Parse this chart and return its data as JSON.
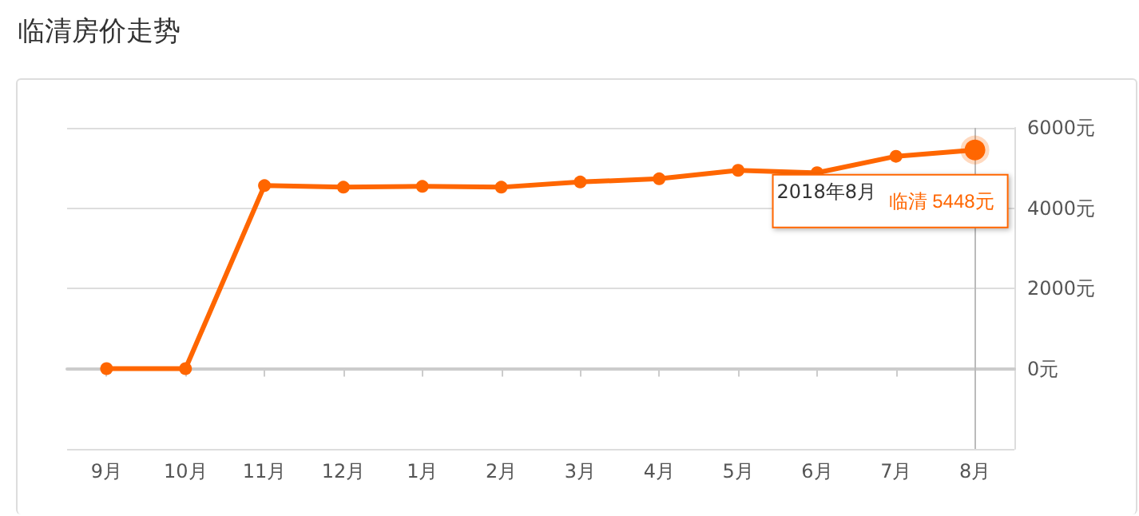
{
  "chart_data": {
    "type": "line",
    "title": "临清房价走势",
    "categories": [
      "9月",
      "10月",
      "11月",
      "12月",
      "1月",
      "2月",
      "3月",
      "4月",
      "5月",
      "6月",
      "7月",
      "8月"
    ],
    "series": [
      {
        "name": "临清",
        "color": "#ff6600",
        "values": [
          0,
          0,
          4560,
          4520,
          4540,
          4520,
          4650,
          4730,
          4940,
          4880,
          5290,
          5448
        ],
        "value_labels": [
          null,
          null,
          null,
          null,
          null,
          null,
          null,
          null,
          null,
          null,
          null,
          "5448元"
        ]
      }
    ],
    "ylim": [
      -2000,
      6000
    ],
    "yticks": [
      {
        "value": -2000,
        "label": null
      },
      {
        "value": 0,
        "label": "0元"
      },
      {
        "value": 2000,
        "label": "2000元"
      },
      {
        "value": 4000,
        "label": "4000元"
      },
      {
        "value": 6000,
        "label": "6000元"
      }
    ],
    "annotations": [
      "2018年8月"
    ],
    "ref_lines": [
      {
        "axis": "x",
        "value": "8月",
        "color": "#bbbbbb"
      }
    ],
    "grid": "y",
    "marker": "circle",
    "line_style": "solid",
    "legend": false
  }
}
